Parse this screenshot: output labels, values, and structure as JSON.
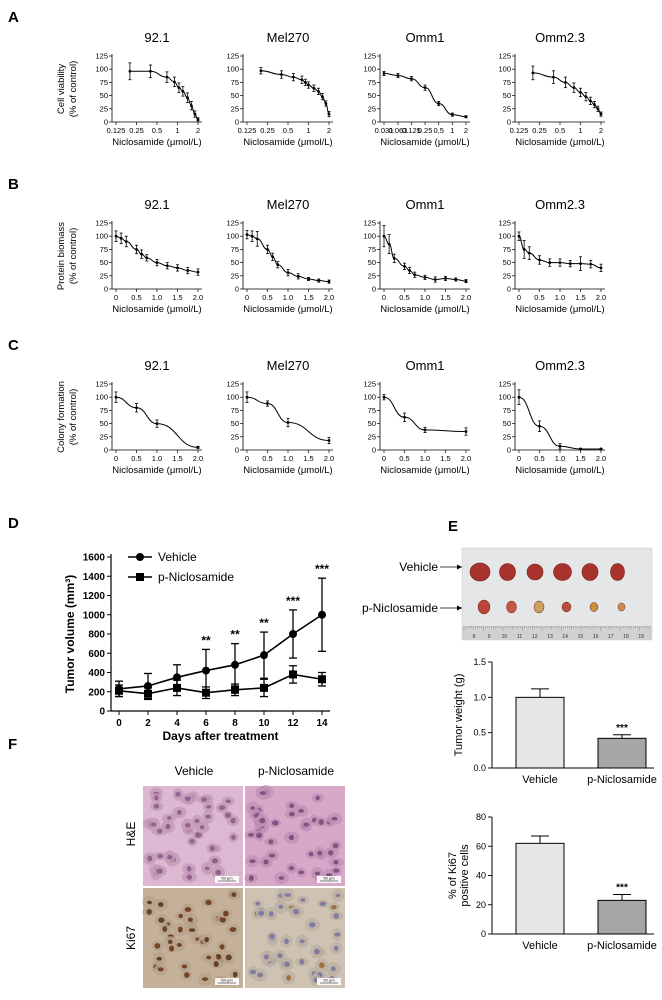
{
  "panels": {
    "A": "A",
    "B": "B",
    "C": "C",
    "D": "D",
    "E": "E",
    "F": "F"
  },
  "chart_data": [
    {
      "id": "A",
      "type": "line",
      "scale": "log2",
      "ylabel": [
        "Cell viability",
        "(% of control)"
      ],
      "xlabel": "Niclosamide (μmol/L)",
      "yticks": [
        "0",
        "25",
        "50",
        "75",
        "100",
        "125"
      ],
      "ylim": [
        0,
        125
      ],
      "subplots": [
        {
          "title": "92.1",
          "xticks": [
            "0.125",
            "0.25",
            "0.5",
            "1",
            "2"
          ],
          "xticks_v": [
            0.125,
            0.25,
            0.5,
            1,
            2
          ],
          "x": [
            0.2,
            0.4,
            0.7,
            0.9,
            1.05,
            1.2,
            1.4,
            1.6,
            1.8,
            2.0
          ],
          "y": [
            96,
            96,
            85,
            76,
            65,
            58,
            46,
            31,
            15,
            5
          ],
          "err": [
            16,
            12,
            10,
            9,
            9,
            9,
            9,
            8,
            6,
            3
          ]
        },
        {
          "title": "Mel270",
          "xticks": [
            "0.125",
            "0.25",
            "0.5",
            "1",
            "2"
          ],
          "xticks_v": [
            0.125,
            0.25,
            0.5,
            1,
            2
          ],
          "x": [
            0.2,
            0.4,
            0.6,
            0.8,
            0.9,
            1.0,
            1.2,
            1.4,
            1.6,
            1.8,
            2.0
          ],
          "y": [
            97,
            90,
            85,
            80,
            75,
            70,
            64,
            58,
            48,
            35,
            15
          ],
          "err": [
            6,
            7,
            7,
            7,
            6,
            6,
            6,
            6,
            6,
            5,
            5
          ]
        },
        {
          "title": "Omm1",
          "xticks": [
            "0.031",
            "0.063",
            "0.125",
            "0.25",
            "0.5",
            "1",
            "2"
          ],
          "xticks_v": [
            0.031,
            0.063,
            0.125,
            0.25,
            0.5,
            1,
            2
          ],
          "x": [
            0.031,
            0.063,
            0.125,
            0.25,
            0.5,
            1.0,
            2.0
          ],
          "y": [
            92,
            88,
            82,
            65,
            35,
            14,
            10
          ],
          "err": [
            4,
            4,
            4,
            5,
            4,
            3,
            2
          ]
        },
        {
          "title": "Omm2.3",
          "xticks": [
            "0.125",
            "0.25",
            "0.5",
            "1",
            "2"
          ],
          "xticks_v": [
            0.125,
            0.25,
            0.5,
            1,
            2
          ],
          "x": [
            0.2,
            0.4,
            0.6,
            0.8,
            1.0,
            1.2,
            1.4,
            1.6,
            1.8,
            2.0
          ],
          "y": [
            93,
            85,
            75,
            65,
            56,
            48,
            40,
            33,
            25,
            15
          ],
          "err": [
            13,
            12,
            10,
            9,
            8,
            8,
            7,
            6,
            5,
            4
          ]
        }
      ]
    },
    {
      "id": "B",
      "type": "line",
      "scale": "linear",
      "ylabel": [
        "Protein biomass",
        "(% of control)"
      ],
      "xlabel": "Niclosamide (μmol/L)",
      "yticks": [
        "0",
        "25",
        "50",
        "75",
        "100",
        "125"
      ],
      "ylim": [
        0,
        125
      ],
      "xticks": [
        "0",
        "0.5",
        "1.0",
        "1.5",
        "2.0"
      ],
      "subplots": [
        {
          "title": "92.1",
          "x": [
            0,
            0.125,
            0.25,
            0.5,
            0.625,
            0.75,
            1.0,
            1.25,
            1.5,
            1.75,
            2.0
          ],
          "y": [
            100,
            96,
            90,
            75,
            66,
            59,
            50,
            44,
            40,
            35,
            32
          ],
          "err": [
            10,
            10,
            10,
            8,
            8,
            6,
            6,
            6,
            6,
            6,
            6
          ]
        },
        {
          "title": "Mel270",
          "x": [
            0,
            0.125,
            0.25,
            0.5,
            0.625,
            0.75,
            1.0,
            1.25,
            1.5,
            1.75,
            2.0
          ],
          "y": [
            103,
            100,
            95,
            75,
            61,
            46,
            31,
            24,
            19,
            16,
            14
          ],
          "err": [
            8,
            10,
            14,
            8,
            7,
            6,
            6,
            5,
            3,
            3,
            3
          ]
        },
        {
          "title": "Omm1",
          "x": [
            0,
            0.125,
            0.25,
            0.5,
            0.625,
            0.75,
            1.0,
            1.25,
            1.5,
            1.75,
            2.0
          ],
          "y": [
            100,
            85,
            58,
            43,
            35,
            27,
            22,
            18,
            20,
            18,
            15
          ],
          "err": [
            20,
            18,
            8,
            6,
            6,
            5,
            4,
            5,
            4,
            3,
            3
          ]
        },
        {
          "title": "Omm2.3",
          "x": [
            0,
            0.125,
            0.25,
            0.5,
            0.75,
            1.0,
            1.25,
            1.5,
            1.75,
            2.0
          ],
          "y": [
            100,
            75,
            68,
            55,
            50,
            50,
            48,
            48,
            47,
            40
          ],
          "err": [
            8,
            17,
            12,
            8,
            7,
            7,
            6,
            13,
            7,
            7
          ]
        }
      ]
    },
    {
      "id": "C",
      "type": "line",
      "scale": "linear",
      "ylabel": [
        "Colony formation",
        "(% of control)"
      ],
      "xlabel": "Niclosamide (μmol/L)",
      "yticks": [
        "0",
        "25",
        "50",
        "75",
        "100",
        "125"
      ],
      "ylim": [
        0,
        125
      ],
      "xticks": [
        "0",
        "0.5",
        "1.0",
        "1.5",
        "2.0"
      ],
      "subplots": [
        {
          "title": "92.1",
          "x": [
            0,
            0.5,
            1.0,
            2.0
          ],
          "y": [
            100,
            80,
            50,
            5
          ],
          "err": [
            10,
            8,
            7,
            2
          ]
        },
        {
          "title": "Mel270",
          "x": [
            0,
            0.5,
            1.0,
            2.0
          ],
          "y": [
            100,
            88,
            52,
            18
          ],
          "err": [
            10,
            5,
            8,
            6
          ]
        },
        {
          "title": "Omm1",
          "x": [
            0,
            0.5,
            1.0,
            2.0
          ],
          "y": [
            100,
            62,
            38,
            35
          ],
          "err": [
            5,
            8,
            5,
            7
          ]
        },
        {
          "title": "Omm2.3",
          "x": [
            0,
            0.5,
            1.0,
            1.5,
            2.0
          ],
          "y": [
            100,
            45,
            7,
            2,
            2
          ],
          "err": [
            14,
            10,
            5,
            1,
            1
          ]
        }
      ]
    },
    {
      "id": "D",
      "type": "line",
      "ylabel": "Tumor volume (mm³)",
      "xlabel": "Days after treatment",
      "ylim": [
        0,
        1600
      ],
      "yticks": [
        "0",
        "200",
        "400",
        "600",
        "800",
        "1000",
        "1200",
        "1400",
        "1600"
      ],
      "xticks": [
        "0",
        "2",
        "4",
        "6",
        "8",
        "10",
        "12",
        "14"
      ],
      "series": [
        {
          "name": "Vehicle",
          "marker": "circle",
          "x": [
            0,
            2,
            4,
            6,
            8,
            10,
            12,
            14
          ],
          "y": [
            230,
            260,
            350,
            420,
            480,
            580,
            800,
            1000
          ],
          "err": [
            80,
            130,
            130,
            220,
            220,
            240,
            250,
            380
          ]
        },
        {
          "name": "p-Niclosamide",
          "marker": "square",
          "x": [
            0,
            2,
            4,
            6,
            8,
            10,
            12,
            14
          ],
          "y": [
            210,
            180,
            240,
            190,
            220,
            240,
            380,
            330
          ],
          "err": [
            60,
            60,
            80,
            60,
            60,
            90,
            90,
            70
          ]
        }
      ],
      "annotations": [
        {
          "x": 6,
          "text": "**"
        },
        {
          "x": 8,
          "text": "**"
        },
        {
          "x": 10,
          "text": "**"
        },
        {
          "x": 12,
          "text": "***"
        },
        {
          "x": 14,
          "text": "***"
        }
      ]
    },
    {
      "id": "E",
      "type": "bar",
      "ylabel": "Tumor weight (g)",
      "categories": [
        "Vehicle",
        "p-Niclosamide"
      ],
      "values": [
        1.0,
        0.42
      ],
      "err": [
        0.12,
        0.05
      ],
      "ylim": [
        0,
        1.5
      ],
      "yticks": [
        "0.0",
        "0.5",
        "1.0",
        "1.5"
      ],
      "annotation": "***"
    },
    {
      "id": "F",
      "type": "bar",
      "ylabel": [
        "% of Ki67",
        "positive cells"
      ],
      "categories": [
        "Vehicle",
        "p-Niclosamide"
      ],
      "values": [
        62,
        23
      ],
      "err": [
        5,
        4
      ],
      "ylim": [
        0,
        80
      ],
      "yticks": [
        "0",
        "20",
        "40",
        "60",
        "80"
      ],
      "annotation": "***"
    }
  ],
  "panel_E_photo": {
    "row_labels": [
      "Vehicle",
      "p-Niclosamide"
    ],
    "ruler_numbers": [
      "8",
      "9",
      "10",
      "11",
      "12",
      "13",
      "14",
      "15",
      "16",
      "17",
      "18",
      "19"
    ],
    "tumor_color": "#a8322c"
  },
  "panel_F_micro": {
    "col_labels": [
      "Vehicle",
      "p-Niclosamide"
    ],
    "row_labels": [
      "H&E",
      "Ki67"
    ],
    "scale_text": "50 μm"
  },
  "colors": {
    "bar_vehicle": "#e6e6e6",
    "bar_treated": "#a6a6a6",
    "he_pink": "#d7a6c6",
    "ki67_brown": "#6b3a16"
  }
}
